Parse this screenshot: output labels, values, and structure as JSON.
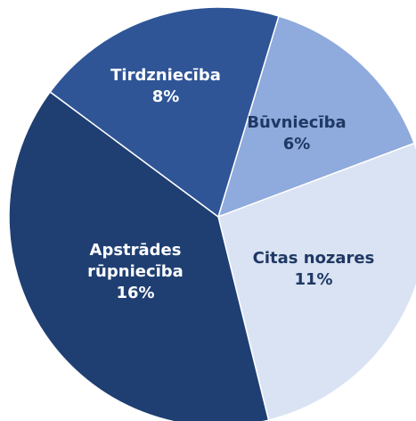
{
  "chart_data": {
    "type": "pie",
    "categories": [
      "Būvniecība",
      "Citas nozares",
      "Apstrādes rūpniecība",
      "Tirdzniecība"
    ],
    "values": [
      6,
      11,
      16,
      8
    ],
    "value_labels": [
      "6%",
      "11%",
      "16%",
      "8%"
    ],
    "colors": [
      "#8faadc",
      "#dae3f3",
      "#1f3f73",
      "#2f5597"
    ]
  }
}
